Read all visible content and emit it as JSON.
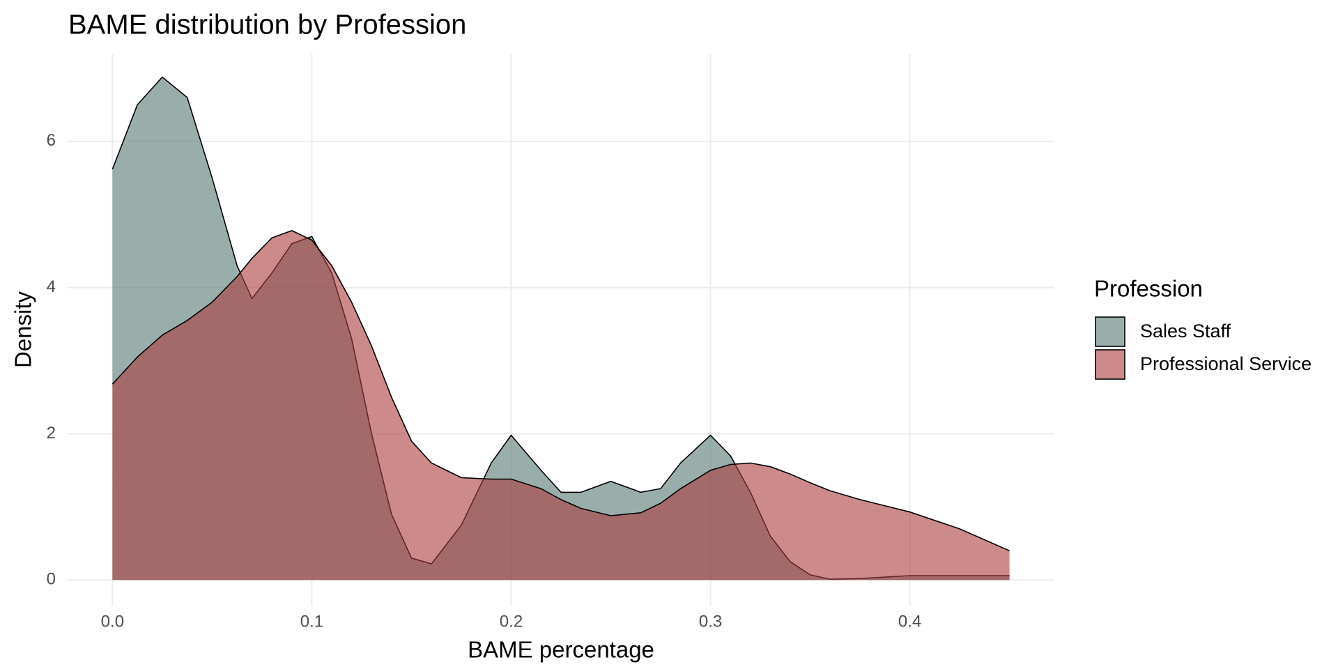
{
  "chart_data": {
    "type": "density",
    "title": "BAME distribution by Profession",
    "x_label": "BAME percentage",
    "y_label": "Density",
    "legend_title": "Profession",
    "legend": "right",
    "grid": true,
    "alpha": 0.6,
    "x": [
      0,
      0.0125,
      0.025,
      0.0375,
      0.05,
      0.0625,
      0.07,
      0.08,
      0.09,
      0.1,
      0.11,
      0.12,
      0.13,
      0.14,
      0.15,
      0.16,
      0.175,
      0.19,
      0.2,
      0.215,
      0.225,
      0.235,
      0.25,
      0.265,
      0.275,
      0.285,
      0.3,
      0.31,
      0.32,
      0.33,
      0.34,
      0.35,
      0.36,
      0.375,
      0.4,
      0.425,
      0.45
    ],
    "series": [
      {
        "name": "Sales Staff",
        "color": "#557873",
        "values": [
          5.62,
          6.5,
          6.88,
          6.6,
          5.5,
          4.3,
          3.85,
          4.2,
          4.6,
          4.7,
          4.2,
          3.3,
          2.0,
          0.9,
          0.3,
          0.22,
          0.75,
          1.6,
          1.98,
          1.5,
          1.2,
          1.2,
          1.35,
          1.2,
          1.25,
          1.6,
          1.98,
          1.7,
          1.2,
          0.6,
          0.25,
          0.07,
          0.01,
          0.02,
          0.06,
          0.06,
          0.06
        ]
      },
      {
        "name": "Professional Service",
        "color": "#aa3c3e",
        "values": [
          2.68,
          3.05,
          3.35,
          3.55,
          3.8,
          4.15,
          4.4,
          4.68,
          4.78,
          4.65,
          4.3,
          3.8,
          3.2,
          2.5,
          1.9,
          1.6,
          1.4,
          1.38,
          1.38,
          1.25,
          1.1,
          0.98,
          0.88,
          0.92,
          1.05,
          1.25,
          1.5,
          1.58,
          1.6,
          1.55,
          1.45,
          1.33,
          1.22,
          1.1,
          0.93,
          0.7,
          0.4
        ]
      }
    ],
    "xlim": [
      -0.0225,
      0.4725
    ],
    "ylim": [
      -0.35,
      7.2
    ],
    "xticks": [
      {
        "value": 0,
        "label": "0.0"
      },
      0.1,
      0.2,
      0.3,
      0.4
    ],
    "yticks": [
      0,
      2,
      4,
      6
    ]
  }
}
